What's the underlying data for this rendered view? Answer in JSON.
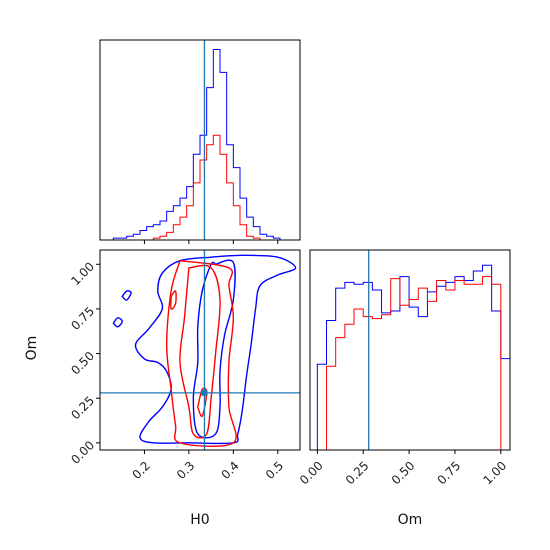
{
  "chart_data": {
    "type": "corner",
    "parameters": [
      "H0",
      "Om"
    ],
    "truth": {
      "H0": 0.335,
      "Om": 0.28
    },
    "colors": {
      "series_a": "#0000ff",
      "series_b": "#ff0000",
      "truth": "#1f77b4"
    },
    "panels": [
      {
        "id": "hist-H0",
        "type": "step-histogram",
        "xlim": [
          0.1,
          0.55
        ],
        "xticks": [
          0.2,
          0.3,
          0.4,
          0.5
        ],
        "tick_labels_shown": false,
        "bin_edges": [
          0.1,
          0.115,
          0.13,
          0.145,
          0.16,
          0.175,
          0.19,
          0.205,
          0.22,
          0.235,
          0.25,
          0.265,
          0.28,
          0.295,
          0.31,
          0.325,
          0.34,
          0.355,
          0.37,
          0.385,
          0.4,
          0.415,
          0.43,
          0.445,
          0.46,
          0.475,
          0.49,
          0.505,
          0.52,
          0.535,
          0.55
        ],
        "series": [
          {
            "color_key": "series_a",
            "values": [
              0,
              0,
              0.01,
              0.01,
              0.02,
              0.03,
              0.05,
              0.07,
              0.08,
              0.1,
              0.15,
              0.18,
              0.22,
              0.28,
              0.45,
              0.55,
              0.8,
              1.0,
              0.88,
              0.5,
              0.38,
              0.22,
              0.12,
              0.07,
              0.03,
              0.02,
              0.01,
              0,
              0,
              0
            ]
          },
          {
            "color_key": "series_b",
            "values": [
              0,
              0,
              0,
              0,
              0,
              0,
              0,
              0,
              0.01,
              0.02,
              0.04,
              0.08,
              0.12,
              0.18,
              0.3,
              0.42,
              0.5,
              0.55,
              0.45,
              0.3,
              0.18,
              0.08,
              0.02,
              0.01,
              0,
              0,
              0,
              0,
              0,
              0
            ]
          }
        ]
      },
      {
        "id": "hist-Om",
        "type": "step-histogram",
        "xlim": [
          -0.04,
          1.05
        ],
        "xticks": [
          0.0,
          0.25,
          0.5,
          0.75,
          1.0
        ],
        "xtick_labels": [
          "0.00",
          "0.25",
          "0.50",
          "0.75",
          "1.00"
        ],
        "xlabel": "Om",
        "bin_edges": [
          0.0,
          0.05,
          0.1,
          0.15,
          0.2,
          0.25,
          0.3,
          0.35,
          0.4,
          0.45,
          0.5,
          0.55,
          0.6,
          0.65,
          0.7,
          0.75,
          0.8,
          0.85,
          0.9,
          0.95,
          1.0,
          1.05
        ],
        "series": [
          {
            "color_key": "series_a",
            "values": [
              0.45,
              0.68,
              0.85,
              0.88,
              0.87,
              0.88,
              0.84,
              0.72,
              0.73,
              0.91,
              0.75,
              0.7,
              0.83,
              0.86,
              0.88,
              0.91,
              0.89,
              0.94,
              0.97,
              0.73,
              0.48
            ]
          },
          {
            "color_key": "series_b",
            "values": [
              0.0,
              0.44,
              0.59,
              0.66,
              0.74,
              0.7,
              0.69,
              0.71,
              0.9,
              0.76,
              0.79,
              0.85,
              0.78,
              0.89,
              0.84,
              0.89,
              0.87,
              0.87,
              0.91,
              0.87,
              0.0
            ]
          }
        ]
      },
      {
        "id": "contour-H0-Om",
        "type": "contour",
        "xlim": [
          0.1,
          0.55
        ],
        "ylim": [
          -0.04,
          1.08
        ],
        "xticks": [
          0.2,
          0.3,
          0.4,
          0.5
        ],
        "xtick_labels": [
          "0.2",
          "0.3",
          "0.4",
          "0.5"
        ],
        "yticks": [
          0.0,
          0.25,
          0.5,
          0.75,
          1.0
        ],
        "ytick_labels": [
          "0.00",
          "0.25",
          "0.50",
          "0.75",
          "1.00"
        ],
        "xlabel": "H0",
        "ylabel": "Om",
        "contours": [
          {
            "color_key": "series_a",
            "points": [
              [
                0.35,
                1.04
              ],
              [
                0.42,
                1.05
              ],
              [
                0.5,
                1.04
              ],
              [
                0.54,
                0.98
              ],
              [
                0.5,
                0.94
              ],
              [
                0.46,
                0.88
              ],
              [
                0.45,
                0.75
              ],
              [
                0.44,
                0.55
              ],
              [
                0.43,
                0.38
              ],
              [
                0.42,
                0.18
              ],
              [
                0.41,
                0.05
              ],
              [
                0.4,
                0.0
              ],
              [
                0.3,
                0.0
              ],
              [
                0.22,
                0.0
              ],
              [
                0.19,
                0.03
              ],
              [
                0.21,
                0.12
              ],
              [
                0.24,
                0.2
              ],
              [
                0.26,
                0.3
              ],
              [
                0.25,
                0.4
              ],
              [
                0.23,
                0.45
              ],
              [
                0.2,
                0.47
              ],
              [
                0.18,
                0.55
              ],
              [
                0.21,
                0.64
              ],
              [
                0.24,
                0.75
              ],
              [
                0.23,
                0.85
              ],
              [
                0.24,
                0.95
              ],
              [
                0.28,
                1.02
              ],
              [
                0.35,
                1.04
              ]
            ]
          },
          {
            "color_key": "series_a",
            "points": [
              [
                0.36,
                1.0
              ],
              [
                0.4,
                1.01
              ],
              [
                0.4,
                0.8
              ],
              [
                0.38,
                0.6
              ],
              [
                0.37,
                0.4
              ],
              [
                0.37,
                0.2
              ],
              [
                0.36,
                0.05
              ],
              [
                0.32,
                0.05
              ],
              [
                0.31,
                0.25
              ],
              [
                0.32,
                0.45
              ],
              [
                0.32,
                0.65
              ],
              [
                0.33,
                0.85
              ],
              [
                0.35,
                1.0
              ],
              [
                0.36,
                1.0
              ]
            ]
          },
          {
            "color_key": "series_a",
            "points": [
              [
                0.15,
                0.82
              ],
              [
                0.16,
                0.85
              ],
              [
                0.17,
                0.84
              ],
              [
                0.16,
                0.8
              ],
              [
                0.15,
                0.82
              ]
            ]
          },
          {
            "color_key": "series_a",
            "points": [
              [
                0.13,
                0.67
              ],
              [
                0.14,
                0.7
              ],
              [
                0.15,
                0.68
              ],
              [
                0.14,
                0.65
              ],
              [
                0.13,
                0.67
              ]
            ]
          },
          {
            "color_key": "series_b",
            "points": [
              [
                0.28,
                1.02
              ],
              [
                0.26,
                0.85
              ],
              [
                0.25,
                0.55
              ],
              [
                0.26,
                0.3
              ],
              [
                0.27,
                0.1
              ],
              [
                0.28,
                0.0
              ],
              [
                0.4,
                0.0
              ],
              [
                0.39,
                0.2
              ],
              [
                0.39,
                0.45
              ],
              [
                0.4,
                0.7
              ],
              [
                0.39,
                0.88
              ],
              [
                0.39,
                0.98
              ],
              [
                0.28,
                1.02
              ]
            ]
          },
          {
            "color_key": "series_b",
            "points": [
              [
                0.3,
                0.98
              ],
              [
                0.29,
                0.7
              ],
              [
                0.28,
                0.45
              ],
              [
                0.3,
                0.2
              ],
              [
                0.31,
                0.05
              ],
              [
                0.34,
                0.05
              ],
              [
                0.35,
                0.25
              ],
              [
                0.36,
                0.5
              ],
              [
                0.37,
                0.8
              ],
              [
                0.35,
                0.98
              ],
              [
                0.3,
                0.98
              ]
            ]
          },
          {
            "color_key": "series_b",
            "points": [
              [
                0.32,
                0.2
              ],
              [
                0.33,
                0.3
              ],
              [
                0.34,
                0.28
              ],
              [
                0.33,
                0.15
              ],
              [
                0.32,
                0.2
              ]
            ]
          },
          {
            "color_key": "series_b",
            "points": [
              [
                0.26,
                0.82
              ],
              [
                0.27,
                0.85
              ],
              [
                0.27,
                0.78
              ],
              [
                0.26,
                0.75
              ],
              [
                0.26,
                0.82
              ]
            ]
          }
        ]
      }
    ]
  }
}
